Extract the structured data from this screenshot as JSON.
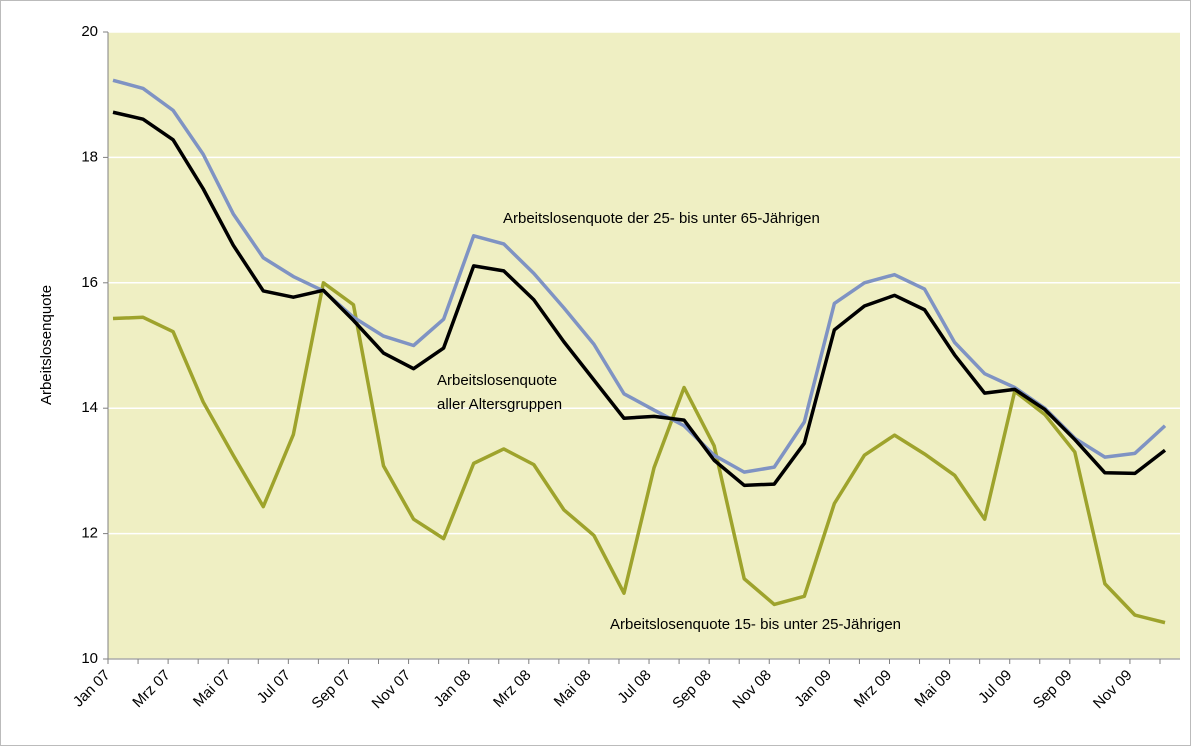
{
  "chart_data": {
    "type": "line",
    "y_label": "Arbeitslosenquote",
    "categories": [
      "Jan 07",
      null,
      "Mrz 07",
      null,
      "Mai 07",
      null,
      "Jul 07",
      null,
      "Sep 07",
      null,
      "Nov 07",
      null,
      "Jan 08",
      null,
      "Mrz 08",
      null,
      "Mai 08",
      null,
      "Jul 08",
      null,
      "Sep 08",
      null,
      "Nov 08",
      null,
      "Jan 09",
      null,
      "Mrz 09",
      null,
      "Mai 09",
      null,
      "Jul 09",
      null,
      "Sep 09",
      null,
      "Nov 09",
      null
    ],
    "series": [
      {
        "color": "#7f93c3",
        "values": [
          19.23,
          19.1,
          18.75,
          18.05,
          17.1,
          16.4,
          16.1,
          15.87,
          15.45,
          15.15,
          15.0,
          15.42,
          16.75,
          16.62,
          16.15,
          15.6,
          15.02,
          14.23,
          13.97,
          13.72,
          13.25,
          12.98,
          13.06,
          13.78,
          15.67,
          16.0,
          16.13,
          15.9,
          15.05,
          14.55,
          14.33,
          14.0,
          13.52,
          13.22,
          13.28,
          13.72
        ]
      },
      {
        "color": "#000000",
        "values": [
          18.72,
          18.61,
          18.28,
          17.5,
          16.6,
          15.87,
          15.77,
          15.88,
          15.4,
          14.88,
          14.63,
          14.96,
          16.27,
          16.19,
          15.73,
          15.06,
          14.45,
          13.84,
          13.87,
          13.81,
          13.17,
          12.77,
          12.79,
          13.44,
          15.25,
          15.63,
          15.8,
          15.57,
          14.85,
          14.24,
          14.3,
          13.98,
          13.5,
          12.97,
          12.96,
          13.33
        ]
      },
      {
        "color": "#9ea32c",
        "values": [
          15.43,
          15.45,
          15.22,
          14.1,
          13.25,
          12.43,
          13.58,
          16.0,
          15.65,
          13.08,
          12.23,
          11.92,
          13.12,
          13.35,
          13.1,
          12.38,
          11.97,
          11.05,
          13.05,
          14.33,
          13.4,
          11.28,
          10.87,
          11.0,
          12.48,
          13.25,
          13.57,
          13.27,
          12.93,
          12.23,
          14.27,
          13.9,
          13.3,
          11.2,
          10.7,
          10.58
        ]
      }
    ],
    "annotations": [
      "Arbeitslosenquote der 25- bis unter 65-Jährigen",
      "Arbeitslosenquote",
      "aller Altersgruppen",
      "Arbeitslosenquote 15- bis unter 25-Jährigen"
    ],
    "ylim": [
      10,
      20
    ],
    "yticks": [
      10,
      12,
      14,
      16,
      18,
      20
    ],
    "grid": true,
    "background": "#efefc3"
  }
}
